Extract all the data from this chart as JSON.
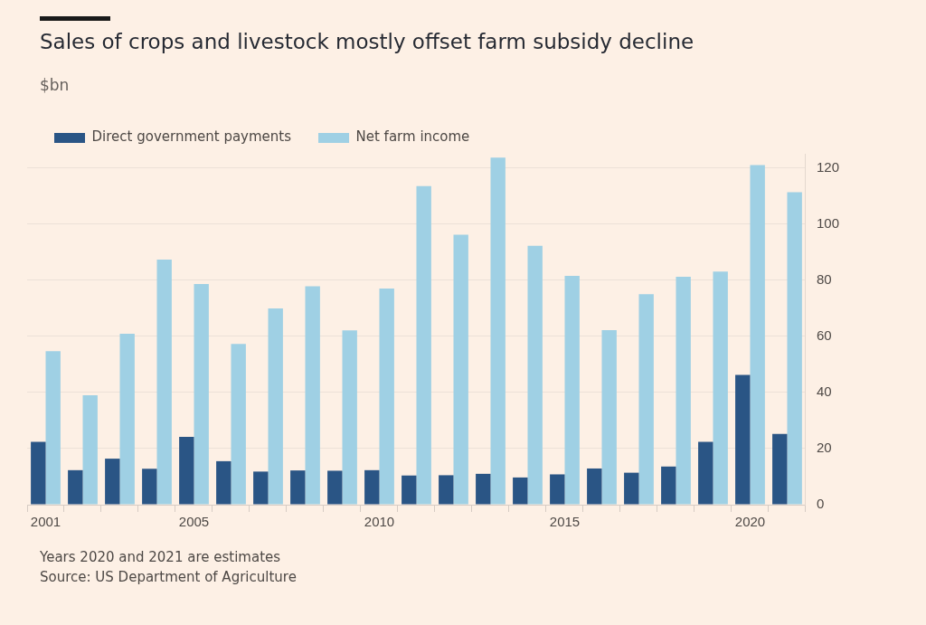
{
  "chart_data": {
    "type": "bar",
    "title": "Sales of crops and livestock mostly offset farm subsidy decline",
    "subtitle": "$bn",
    "categories": [
      "2001",
      null,
      null,
      null,
      "2005",
      null,
      null,
      null,
      null,
      "2010",
      null,
      null,
      null,
      null,
      "2015",
      null,
      null,
      null,
      null,
      "2020",
      null
    ],
    "series": [
      {
        "name": "Direct government payments",
        "color": "#2a5585",
        "values": [
          22.4,
          12.3,
          16.4,
          12.8,
          24.2,
          15.5,
          11.8,
          12.2,
          12.1,
          12.3,
          10.4,
          10.5,
          11.0,
          9.7,
          10.8,
          12.9,
          11.4,
          13.6,
          22.4,
          46.2,
          25.2
        ]
      },
      {
        "name": "Net farm income",
        "color": "#9fd0e4",
        "values": [
          54.7,
          39.0,
          60.9,
          87.3,
          78.6,
          57.3,
          69.9,
          77.8,
          62.1,
          77.0,
          113.5,
          96.2,
          123.6,
          92.2,
          81.5,
          62.2,
          75.0,
          81.2,
          83.0,
          121.0,
          111.3
        ]
      }
    ],
    "ylim": [
      0,
      125
    ],
    "yticks": [
      0,
      20,
      40,
      60,
      80,
      100,
      120
    ],
    "grid": "y",
    "legend": "top left",
    "annotations": [
      "Years 2020 and 2021 are estimates",
      "Source: US Department of Agriculture"
    ]
  }
}
